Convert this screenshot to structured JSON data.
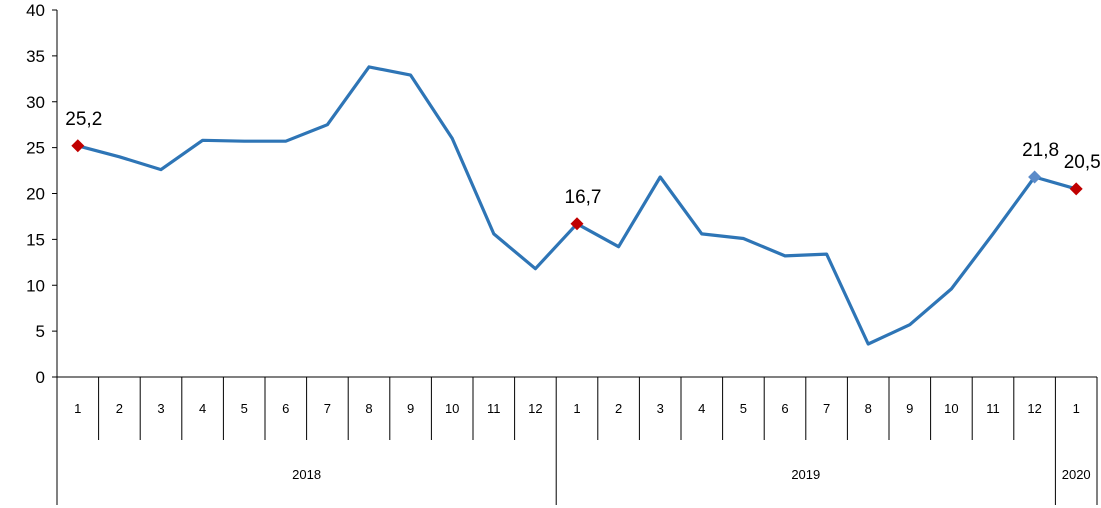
{
  "chart_data": {
    "type": "line",
    "ylim": [
      0,
      40
    ],
    "yticks": [
      "0",
      "5",
      "10",
      "15",
      "20",
      "25",
      "30",
      "35",
      "40"
    ],
    "categories": [
      "1",
      "2",
      "3",
      "4",
      "5",
      "6",
      "7",
      "8",
      "9",
      "10",
      "11",
      "12",
      "1",
      "2",
      "3",
      "4",
      "5",
      "6",
      "7",
      "8",
      "9",
      "10",
      "11",
      "12",
      "1"
    ],
    "years": [
      {
        "label": "2018",
        "months": 12
      },
      {
        "label": "2019",
        "months": 12
      },
      {
        "label": "2020",
        "months": 1
      }
    ],
    "series": [
      {
        "color": "#2E75B6",
        "values": [
          25.2,
          24.0,
          22.6,
          25.8,
          25.7,
          25.7,
          27.5,
          33.8,
          32.9,
          26.0,
          15.6,
          11.8,
          16.7,
          14.2,
          21.8,
          15.6,
          15.1,
          13.2,
          13.4,
          3.6,
          5.7,
          9.6,
          15.6,
          21.8,
          20.5
        ]
      }
    ],
    "data_labels": [
      {
        "index": 0,
        "text": "25,2",
        "marker_color": "#C00000"
      },
      {
        "index": 12,
        "text": "16,7",
        "marker_color": "#C00000"
      },
      {
        "index": 23,
        "text": "21,8",
        "marker_color": "#5B8BC9"
      },
      {
        "index": 24,
        "text": "20,5",
        "marker_color": "#C00000"
      }
    ],
    "grid": false
  }
}
